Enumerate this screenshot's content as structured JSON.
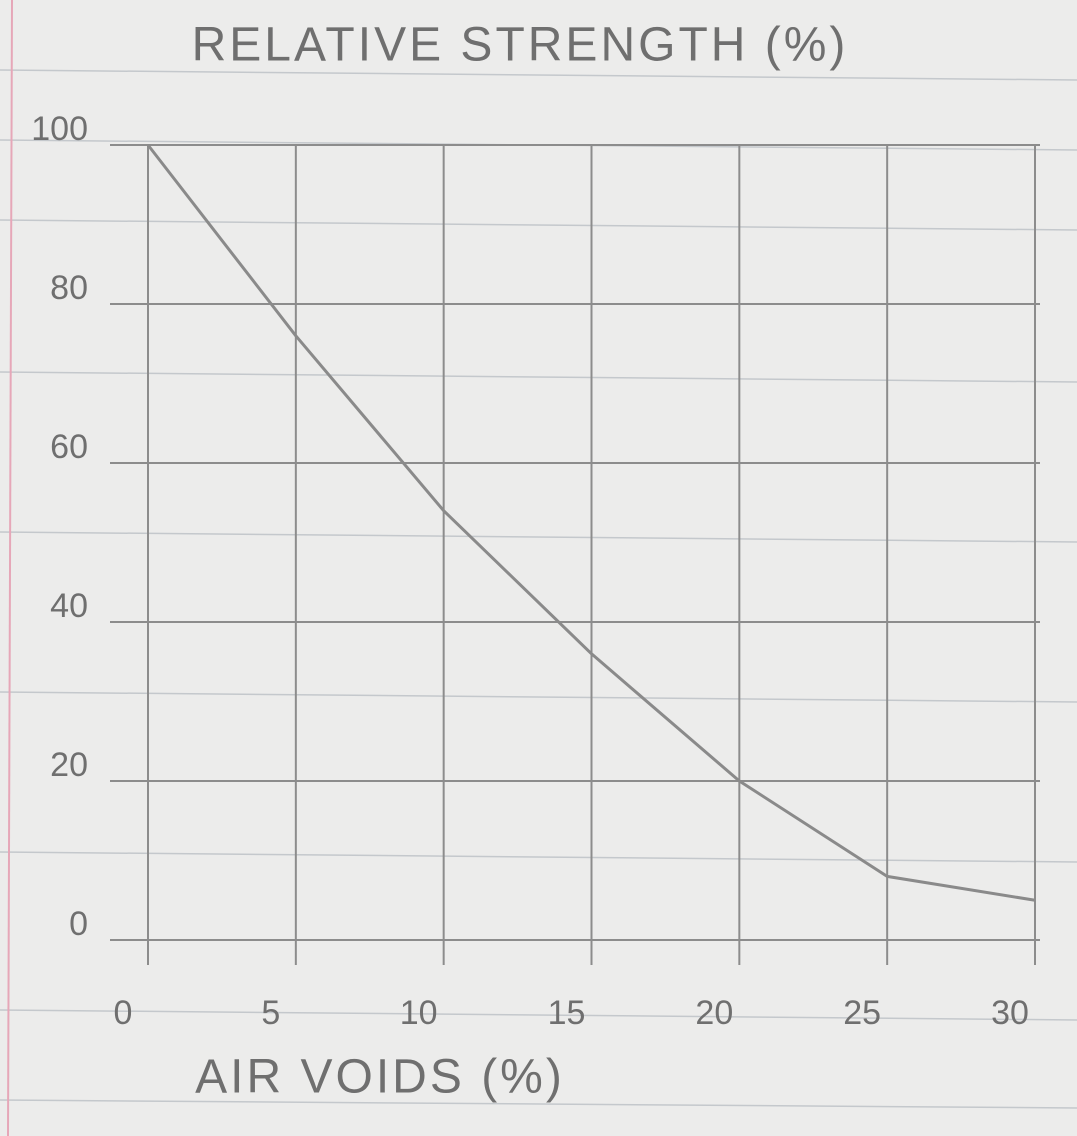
{
  "chart_data": {
    "type": "line",
    "title": "RELATIVE STRENGTH (%)",
    "x_label": "AIR VOIDS (%)",
    "x": [
      0,
      5,
      10,
      15,
      20,
      25,
      30
    ],
    "series": [
      {
        "color": "#8a8a8a",
        "values": [
          100,
          76,
          54,
          36,
          20,
          8,
          5
        ]
      }
    ],
    "xlim": [
      0,
      30
    ],
    "xticks": [
      0,
      5,
      10,
      15,
      20,
      25,
      30
    ],
    "ylim": [
      0,
      100
    ],
    "yticks": [
      0,
      20,
      40,
      60,
      80,
      100
    ],
    "grid": true
  }
}
